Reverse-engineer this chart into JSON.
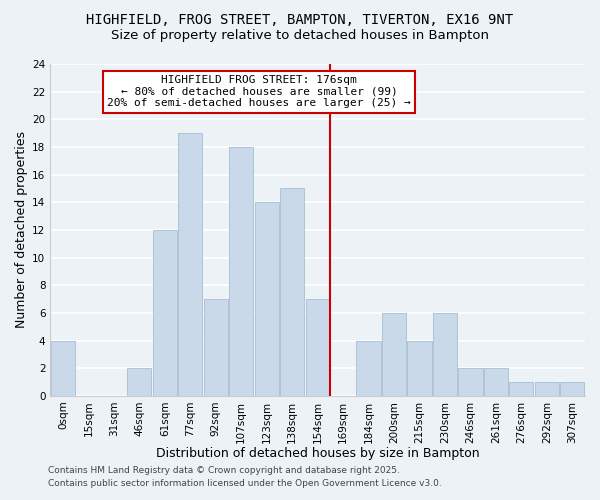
{
  "title": "HIGHFIELD, FROG STREET, BAMPTON, TIVERTON, EX16 9NT",
  "subtitle": "Size of property relative to detached houses in Bampton",
  "xlabel": "Distribution of detached houses by size in Bampton",
  "ylabel": "Number of detached properties",
  "bar_labels": [
    "0sqm",
    "15sqm",
    "31sqm",
    "46sqm",
    "61sqm",
    "77sqm",
    "92sqm",
    "107sqm",
    "123sqm",
    "138sqm",
    "154sqm",
    "169sqm",
    "184sqm",
    "200sqm",
    "215sqm",
    "230sqm",
    "246sqm",
    "261sqm",
    "276sqm",
    "292sqm",
    "307sqm"
  ],
  "bar_values": [
    4,
    0,
    0,
    2,
    12,
    19,
    7,
    18,
    14,
    15,
    7,
    0,
    4,
    6,
    4,
    6,
    2,
    2,
    1,
    1,
    1
  ],
  "bar_color": "#c9d9e9",
  "bar_edgecolor": "#a8bfcf",
  "vline_color": "#cc0000",
  "ylim": [
    0,
    24
  ],
  "yticks": [
    0,
    2,
    4,
    6,
    8,
    10,
    12,
    14,
    16,
    18,
    20,
    22,
    24
  ],
  "annotation_title": "HIGHFIELD FROG STREET: 176sqm",
  "annotation_line1": "← 80% of detached houses are smaller (99)",
  "annotation_line2": "20% of semi-detached houses are larger (25) →",
  "annotation_box_color": "#ffffff",
  "annotation_box_edgecolor": "#cc0000",
  "footer1": "Contains HM Land Registry data © Crown copyright and database right 2025.",
  "footer2": "Contains public sector information licensed under the Open Government Licence v3.0.",
  "background_color": "#edf2f7",
  "grid_color": "#ffffff",
  "title_fontsize": 10,
  "subtitle_fontsize": 9.5,
  "axis_label_fontsize": 9,
  "tick_fontsize": 7.5,
  "annotation_fontsize": 8,
  "footer_fontsize": 6.5
}
